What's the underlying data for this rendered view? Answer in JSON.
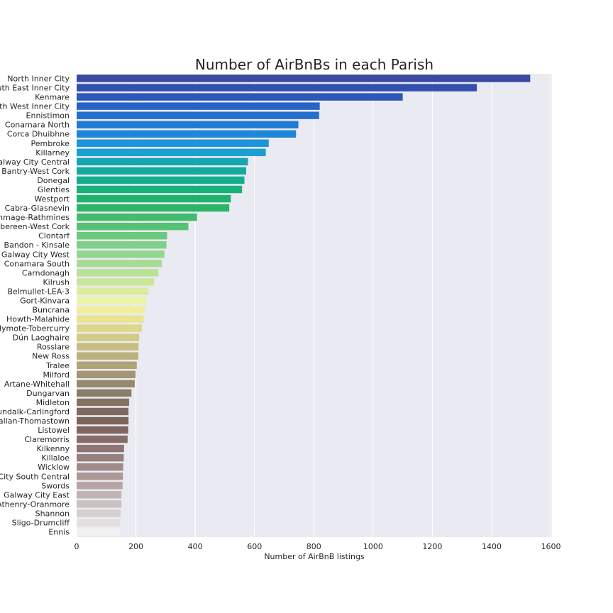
{
  "chart_data": {
    "type": "bar",
    "orientation": "horizontal",
    "title": "Number of AirBnBs in each Parish",
    "xlabel": "Number of AirBnB listings",
    "ylabel": "",
    "xlim": [
      0,
      1610
    ],
    "xticks": [
      "0",
      "200",
      "400",
      "600",
      "800",
      "1000",
      "1200",
      "1400",
      "1600"
    ],
    "grid": true,
    "categories": [
      "North Inner City",
      "South East Inner City",
      "Kenmare",
      "South West Inner City",
      "Ennistimon",
      "Conamara North",
      "Corca Dhuibhne",
      "Pembroke",
      "Killarney",
      "Galway City Central",
      "Bantry-West Cork",
      "Donegal",
      "Glenties",
      "Westport",
      "Cabra-Glasnevin",
      "Kimmage-Rathmines",
      "Skibbereen-West Cork",
      "Clontarf",
      "Bandon - Kinsale",
      "Galway City West",
      "Conamara South",
      "Carndonagh",
      "Kilrush",
      "Belmullet-LEA-3",
      "Gort-Kinvara",
      "Buncrana",
      "Howth-Malahide",
      "Ballymote-Tobercurry",
      "Dún Laoghaire",
      "Rosslare",
      "New Ross",
      "Tralee",
      "Milford",
      "Artane-Whitehall",
      "Dungarvan",
      "Midleton",
      "Dundalk-Carlingford",
      "Callan-Thomastown",
      "Listowel",
      "Claremorris",
      "Kilkenny",
      "Killaloe",
      "Wicklow",
      "Cork City South Central",
      "Swords",
      "Galway City East",
      "Athenry-Oranmore",
      "Shannon",
      "Sligo-Drumcliff",
      "Ennis"
    ],
    "values": [
      1530,
      1350,
      1100,
      820,
      818,
      748,
      740,
      648,
      638,
      578,
      572,
      566,
      558,
      520,
      515,
      406,
      377,
      305,
      303,
      296,
      287,
      276,
      261,
      243,
      235,
      230,
      226,
      220,
      211,
      209,
      208,
      203,
      199,
      196,
      185,
      177,
      175,
      175,
      174,
      172,
      160,
      159,
      157,
      156,
      155,
      151,
      151,
      149,
      147,
      146
    ],
    "colors": [
      "#3a4aa1",
      "#3350ad",
      "#2c58b9",
      "#2862c4",
      "#246ece",
      "#207ad5",
      "#1e87da",
      "#1d94db",
      "#1aa0d2",
      "#15a6b2",
      "#13ab9f",
      "#15ae8c",
      "#18b17a",
      "#1fb26e",
      "#2cb567",
      "#42bb6c",
      "#55c273",
      "#6bc97d",
      "#7fd087",
      "#93d68f",
      "#a7db93",
      "#bae197",
      "#cbe69a",
      "#dcec9e",
      "#ebf3a6",
      "#efef9c",
      "#e8e492",
      "#ddd78b",
      "#d2cb86",
      "#c7be80",
      "#bbb17c",
      "#afa477",
      "#a39673",
      "#97896e",
      "#8c7d69",
      "#857264",
      "#806a60",
      "#7d645c",
      "#80645e",
      "#876c67",
      "#8e7572",
      "#97807d",
      "#a18b89",
      "#ab9896",
      "#b5a5a4",
      "#c0b3b2",
      "#cac1c0",
      "#d6cfcf",
      "#e3dfdf",
      "#f2f0f0"
    ],
    "plot_background": "#eaeaf2"
  }
}
